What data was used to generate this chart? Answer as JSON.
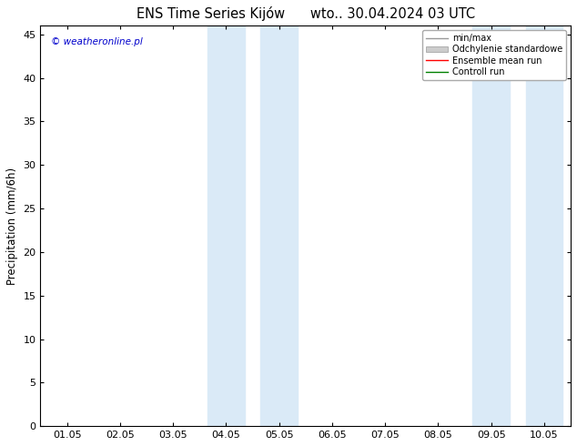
{
  "title": "ENS Time Series Kijów      wto.. 30.04.2024 03 UTC",
  "ylabel": "Precipitation (mm/6h)",
  "xlim": [
    -0.5,
    9.5
  ],
  "ylim": [
    0,
    46
  ],
  "yticks": [
    0,
    5,
    10,
    15,
    20,
    25,
    30,
    35,
    40,
    45
  ],
  "xtick_labels": [
    "01.05",
    "02.05",
    "03.05",
    "04.05",
    "05.05",
    "06.05",
    "07.05",
    "08.05",
    "09.05",
    "10.05"
  ],
  "xtick_positions": [
    0,
    1,
    2,
    3,
    4,
    5,
    6,
    7,
    8,
    9
  ],
  "shaded_regions": [
    {
      "xmin": 2.65,
      "xmax": 3.35,
      "color": "#daeaf7",
      "alpha": 1.0
    },
    {
      "xmin": 3.65,
      "xmax": 4.35,
      "color": "#daeaf7",
      "alpha": 1.0
    },
    {
      "xmin": 7.65,
      "xmax": 8.35,
      "color": "#daeaf7",
      "alpha": 1.0
    },
    {
      "xmin": 8.65,
      "xmax": 9.35,
      "color": "#daeaf7",
      "alpha": 1.0
    }
  ],
  "legend_entries": [
    {
      "label": "min/max",
      "color": "#999999",
      "linestyle": "-",
      "linewidth": 1.0
    },
    {
      "label": "Odchylenie standardowe",
      "color": "#cccccc",
      "linestyle": "-",
      "linewidth": 6
    },
    {
      "label": "Ensemble mean run",
      "color": "#ff0000",
      "linestyle": "-",
      "linewidth": 1.0
    },
    {
      "label": "Controll run",
      "color": "#008000",
      "linestyle": "-",
      "linewidth": 1.0
    }
  ],
  "watermark": "© weatheronline.pl",
  "watermark_color": "#0000cc",
  "background_color": "#ffffff",
  "plot_background": "#ffffff",
  "border_color": "#000000",
  "title_fontsize": 10.5,
  "axis_fontsize": 8.5,
  "tick_fontsize": 8
}
